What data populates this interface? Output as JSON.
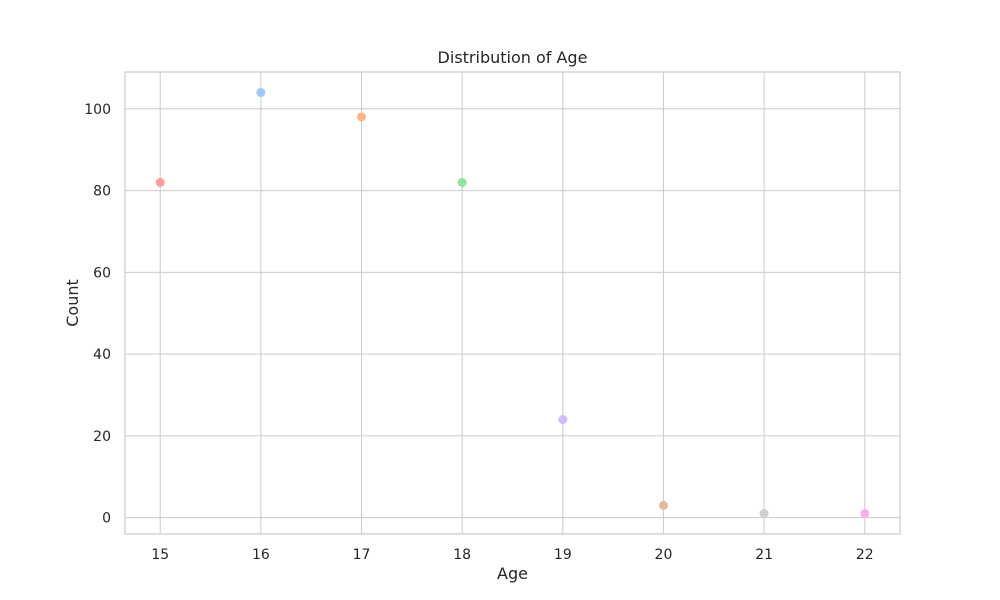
{
  "chart_data": {
    "type": "scatter",
    "title": "Distribution of Age",
    "xlabel": "Age",
    "ylabel": "Count",
    "x": [
      15,
      16,
      17,
      18,
      19,
      20,
      21,
      22
    ],
    "y": [
      82,
      104,
      98,
      82,
      24,
      3,
      1,
      1
    ],
    "point_colors": [
      "#ff9f9b",
      "#a1c9f4",
      "#ffb482",
      "#8de5a1",
      "#d0bbff",
      "#debb9b",
      "#cfcfcf",
      "#fab0e4"
    ],
    "xlim": [
      14.65,
      22.35
    ],
    "ylim": [
      -4,
      109
    ],
    "xticks": [
      "15",
      "16",
      "17",
      "18",
      "19",
      "20",
      "21",
      "22"
    ],
    "yticks": [
      "0",
      "20",
      "40",
      "60",
      "80",
      "100"
    ],
    "grid": true,
    "legend": "none"
  }
}
